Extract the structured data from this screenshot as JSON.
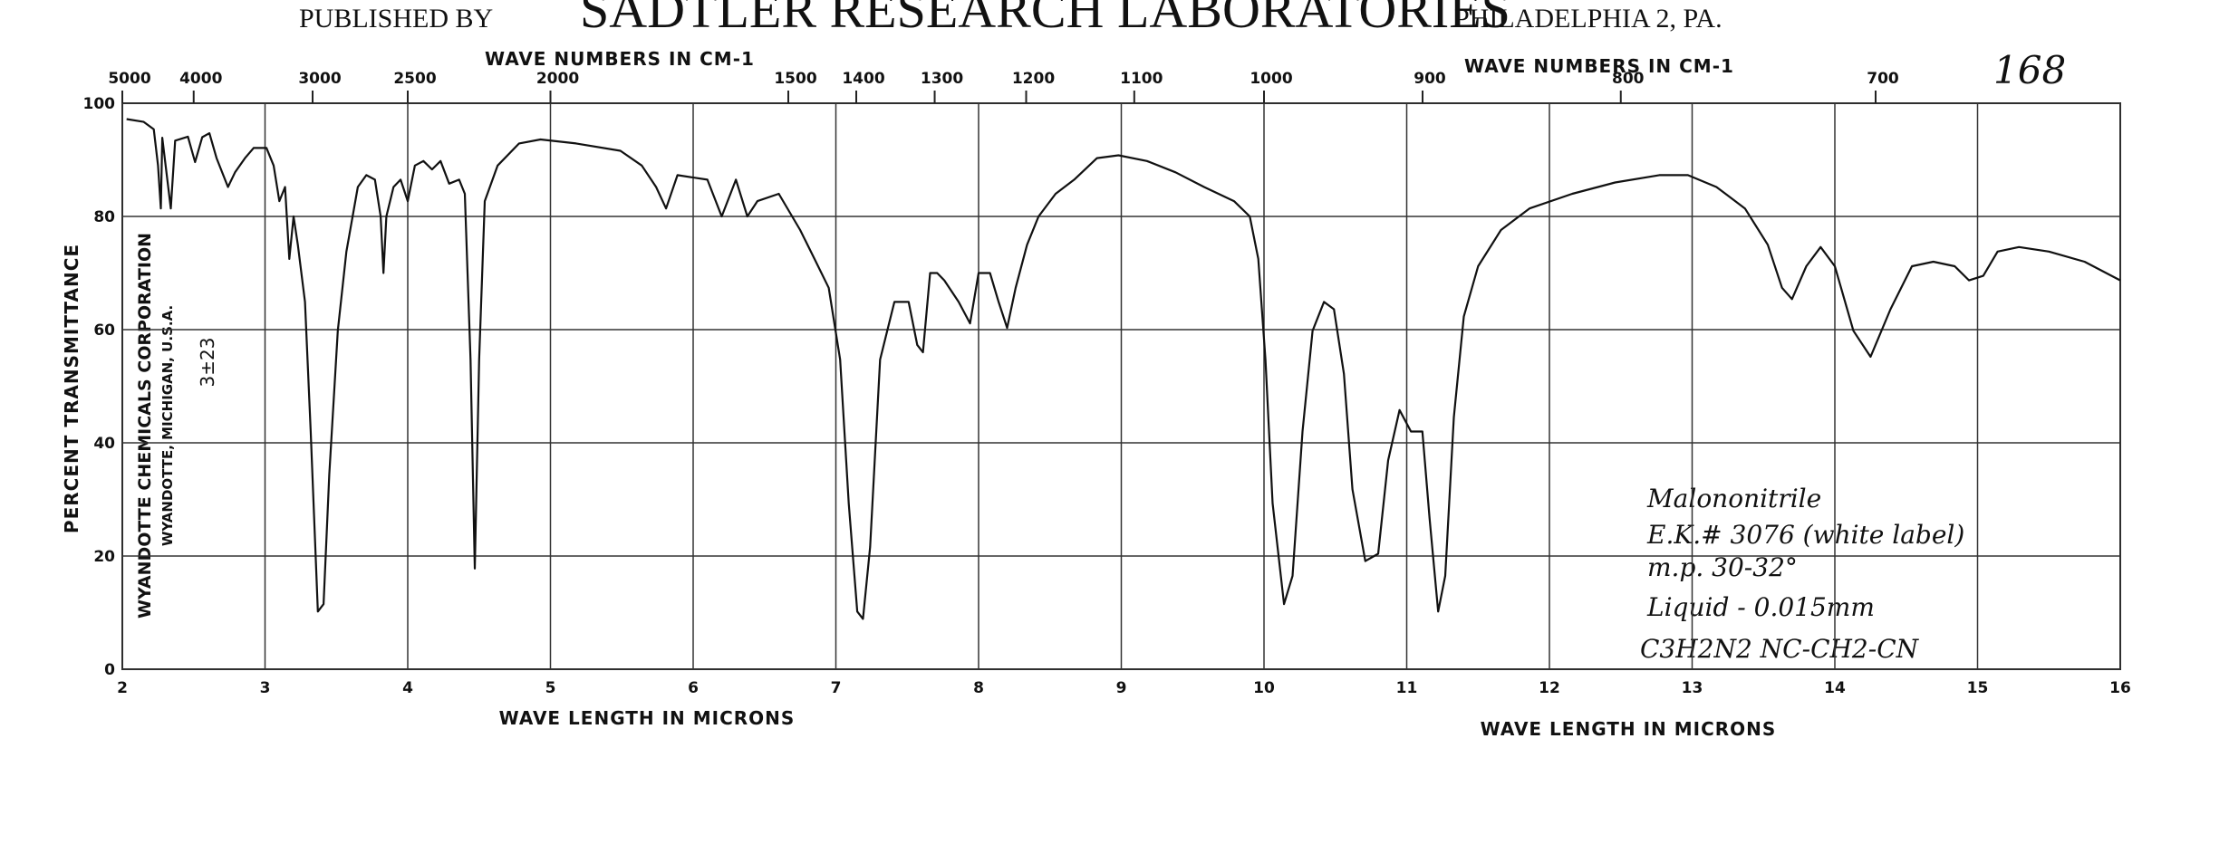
{
  "header": {
    "publisher_prefix": "PUBLISHED BY",
    "publisher": "SADTLER RESEARCH LABORATORIES",
    "publisher_city": "PHILADELPHIA 2, PA."
  },
  "chart_data": {
    "type": "line",
    "xlabel": "WAVE LENGTH IN MICRONS",
    "xlabel_right": "WAVE LENGTH IN MICRONS",
    "x2label": "WAVE NUMBERS IN CM-1",
    "x2label_right": "WAVE NUMBERS IN CM-1",
    "ylabel": "PERCENT TRANSMITTANCE",
    "xlim": [
      2,
      16
    ],
    "xticks": [
      2,
      3,
      4,
      5,
      6,
      7,
      8,
      9,
      10,
      11,
      12,
      13,
      14,
      15,
      16
    ],
    "x2scale": "reciprocal",
    "x2ticks": [
      5000,
      4000,
      3000,
      2500,
      2000,
      1500,
      1400,
      1300,
      1200,
      1100,
      1000,
      900,
      800,
      700
    ],
    "ylim": [
      0,
      100
    ],
    "yticks": [
      0,
      20,
      40,
      60,
      80,
      100
    ],
    "grid": true,
    "color": "#111111",
    "x": [
      2.03,
      2.15,
      2.22,
      2.25,
      2.27,
      2.28,
      2.34,
      2.37,
      2.46,
      2.51,
      2.56,
      2.61,
      2.66,
      2.74,
      2.79,
      2.86,
      2.92,
      3.01,
      3.06,
      3.1,
      3.14,
      3.17,
      3.2,
      3.23,
      3.28,
      3.32,
      3.37,
      3.41,
      3.45,
      3.51,
      3.57,
      3.65,
      3.71,
      3.77,
      3.81,
      3.83,
      3.85,
      3.9,
      3.95,
      4.0,
      4.05,
      4.11,
      4.17,
      4.23,
      4.29,
      4.36,
      4.4,
      4.44,
      4.47,
      4.5,
      4.54,
      4.63,
      4.78,
      4.93,
      5.18,
      5.49,
      5.64,
      5.74,
      5.81,
      5.89,
      6.1,
      6.2,
      6.3,
      6.38,
      6.45,
      6.6,
      6.75,
      6.85,
      6.95,
      7.03,
      7.09,
      7.15,
      7.19,
      7.24,
      7.31,
      7.41,
      7.51,
      7.57,
      7.61,
      7.66,
      7.71,
      7.76,
      7.86,
      7.94,
      8.0,
      8.08,
      8.14,
      8.2,
      8.26,
      8.34,
      8.42,
      8.54,
      8.67,
      8.83,
      8.98,
      9.18,
      9.38,
      9.58,
      9.79,
      9.9,
      9.96,
      10.01,
      10.06,
      10.14,
      10.2,
      10.27,
      10.34,
      10.42,
      10.49,
      10.56,
      10.62,
      10.71,
      10.8,
      10.87,
      10.95,
      11.03,
      11.11,
      11.16,
      11.22,
      11.27,
      11.33,
      11.4,
      11.5,
      11.66,
      11.86,
      12.16,
      12.46,
      12.77,
      12.97,
      13.17,
      13.37,
      13.53,
      13.63,
      13.7,
      13.8,
      13.9,
      14.0,
      14.13,
      14.25,
      14.39,
      14.54,
      14.69,
      14.84,
      14.94,
      15.04,
      15.14,
      15.29,
      15.5,
      15.75,
      16.0
    ],
    "values": [
      97.2,
      96.7,
      95.4,
      89,
      81.4,
      93.9,
      81.4,
      93.4,
      94.1,
      89.6,
      94,
      94.7,
      90.3,
      85.2,
      87.8,
      90.3,
      92.1,
      92.1,
      89,
      82.7,
      85.2,
      72.5,
      80,
      75,
      64.9,
      42,
      10.2,
      11.5,
      34.4,
      59.8,
      73.8,
      85.2,
      87.3,
      86.5,
      80,
      70,
      80,
      85.2,
      86.5,
      82.7,
      89,
      89.8,
      88.3,
      89.8,
      85.8,
      86.5,
      84,
      54.7,
      17.8,
      54.7,
      82.7,
      89,
      92.9,
      93.6,
      92.9,
      91.6,
      89,
      85.2,
      81.4,
      87.3,
      86.5,
      80,
      86.5,
      80,
      82.7,
      84,
      77.6,
      72.5,
      67.4,
      54.7,
      29.3,
      10.2,
      8.9,
      21.6,
      54.7,
      64.9,
      64.9,
      57.3,
      56,
      70,
      70,
      68.7,
      64.9,
      61.1,
      70,
      70,
      64.9,
      60.3,
      67.4,
      75,
      80,
      84,
      86.5,
      90.3,
      90.8,
      89.8,
      87.8,
      85.2,
      82.7,
      80,
      72.5,
      54.7,
      29.3,
      11.5,
      16.5,
      42,
      59.8,
      64.9,
      63.6,
      52.2,
      31.8,
      19.1,
      20.4,
      36.9,
      45.8,
      42,
      42,
      26.7,
      10.2,
      16.5,
      44.5,
      62.3,
      71.2,
      77.6,
      81.4,
      84,
      86,
      87.3,
      87.3,
      85.2,
      81.4,
      75,
      67.4,
      65.4,
      71.2,
      74.6,
      71.2,
      59.8,
      55.2,
      63.6,
      71.2,
      72,
      71.2,
      68.7,
      69.5,
      73.8,
      74.6,
      73.8,
      72,
      68.7
    ],
    "side_text": [
      "WYANDOTTE CHEMICALS CORPORATION",
      "WYANDOTTE, MICHIGAN, U.S.A.",
      "3±23"
    ],
    "spectrum_number": "168",
    "notes": [
      "Malononitrile",
      "E.K.# 3076 (white label)",
      "m.p. 30-32°",
      "Liquid - 0.015mm",
      "C3H2N2  NC-CH2-CN"
    ]
  }
}
